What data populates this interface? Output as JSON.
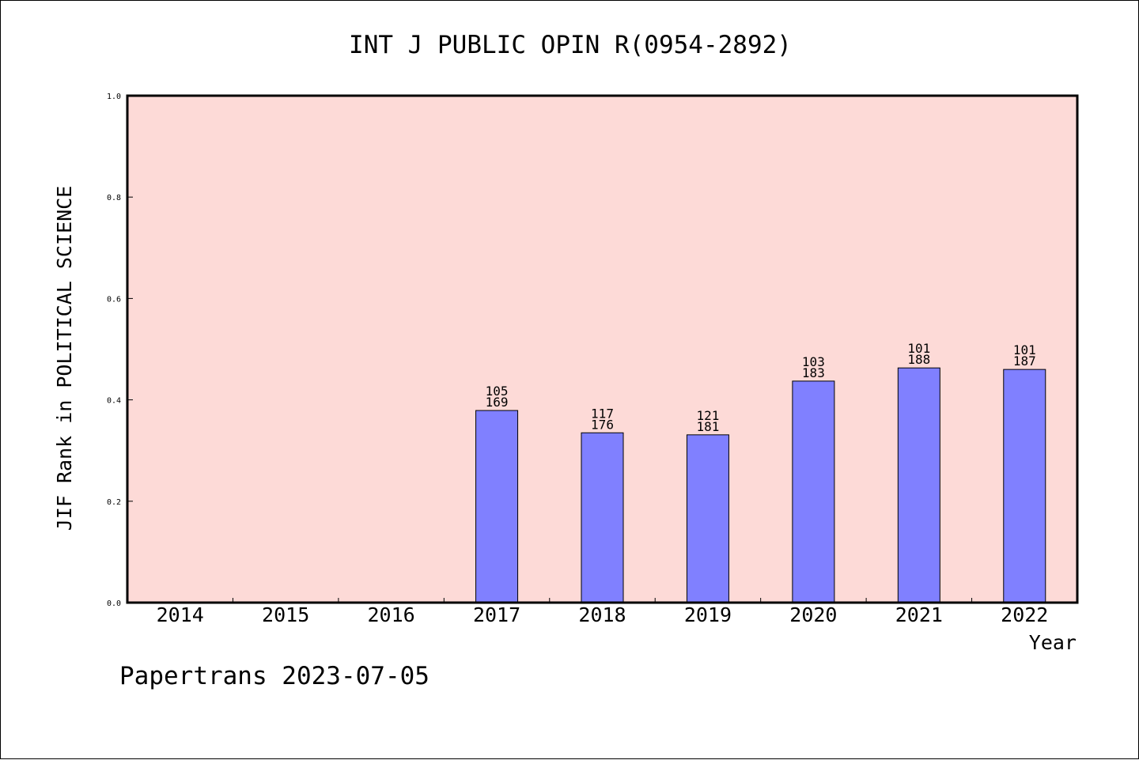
{
  "chart_data": {
    "type": "bar",
    "title": "INT J PUBLIC OPIN R(0954-2892)",
    "ylabel": "JIF Rank in POLITICAL SCIENCE",
    "xlabel": "Year",
    "ylim": [
      0.0,
      1.0
    ],
    "yticks": [
      "0.0",
      "0.2",
      "0.4",
      "0.6",
      "0.8",
      "1.0"
    ],
    "categories": [
      "2014",
      "2015",
      "2016",
      "2017",
      "2018",
      "2019",
      "2020",
      "2021",
      "2022"
    ],
    "values": [
      null,
      null,
      null,
      0.379,
      0.335,
      0.331,
      0.437,
      0.463,
      0.46
    ],
    "labels": [
      null,
      null,
      null,
      {
        "top": "105",
        "bottom": "169"
      },
      {
        "top": "117",
        "bottom": "176"
      },
      {
        "top": "121",
        "bottom": "181"
      },
      {
        "top": "103",
        "bottom": "183"
      },
      {
        "top": "101",
        "bottom": "188"
      },
      {
        "top": "101",
        "bottom": "187"
      }
    ],
    "grid": false,
    "legend": "none",
    "colors": {
      "plot_bg": "#fddad7",
      "bar": "#8080ff",
      "bar_edge": "#000000"
    }
  },
  "footer": "Papertrans 2023-07-05"
}
